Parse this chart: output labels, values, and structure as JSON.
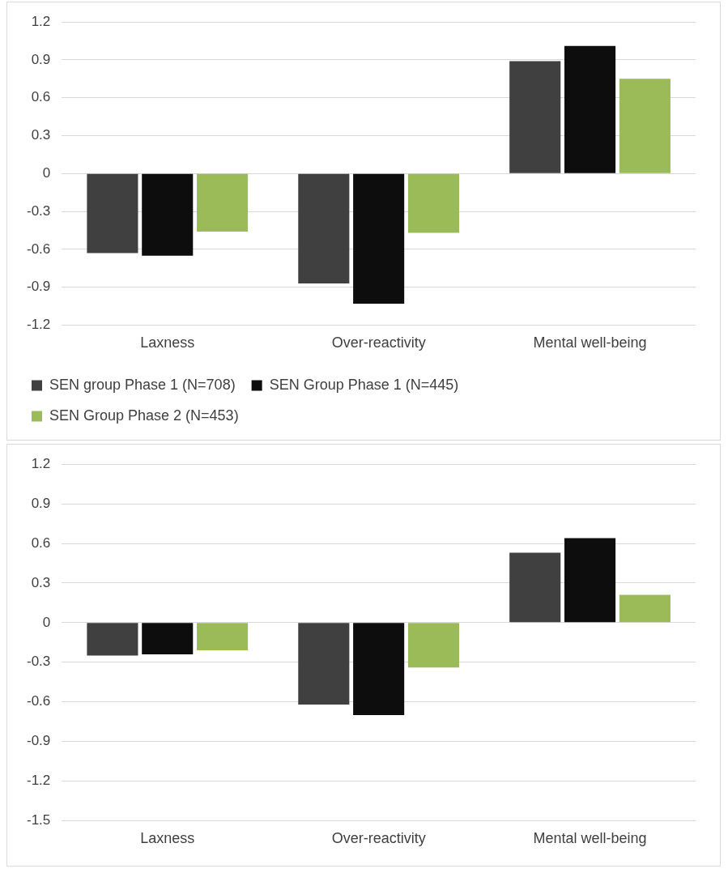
{
  "chart_data": [
    {
      "type": "bar",
      "categories": [
        "Laxness",
        "Over-reactivity",
        "Mental well-being"
      ],
      "series": [
        {
          "name": "SEN group Phase 1 (N=708)",
          "color": "#404040",
          "values": [
            -0.63,
            -0.87,
            0.89
          ]
        },
        {
          "name": "SEN Group Phase 1 (N=445)",
          "color": "#0d0d0d",
          "values": [
            -0.65,
            -1.03,
            1.01
          ]
        },
        {
          "name": "SEN Group Phase 2 (N=453)",
          "color": "#9bbb59",
          "values": [
            -0.46,
            -0.47,
            0.75
          ]
        }
      ],
      "ylim": [
        -1.2,
        1.2
      ],
      "yticks": [
        -1.2,
        -0.9,
        -0.6,
        -0.3,
        0,
        0.3,
        0.6,
        0.9,
        1.2
      ],
      "grid": "y",
      "legend": "bottom"
    },
    {
      "type": "bar",
      "categories": [
        "Laxness",
        "Over-reactivity",
        "Mental well-being"
      ],
      "series": [
        {
          "color": "#404040",
          "values": [
            -0.25,
            -0.62,
            0.53
          ]
        },
        {
          "color": "#0d0d0d",
          "values": [
            -0.24,
            -0.7,
            0.64
          ]
        },
        {
          "color": "#9bbb59",
          "values": [
            -0.21,
            -0.34,
            0.21
          ]
        }
      ],
      "ylim": [
        -1.5,
        1.2
      ],
      "yticks": [
        -1.5,
        -1.2,
        -0.9,
        -0.6,
        -0.3,
        0,
        0.3,
        0.6,
        0.9,
        1.2
      ],
      "grid": "y"
    }
  ]
}
